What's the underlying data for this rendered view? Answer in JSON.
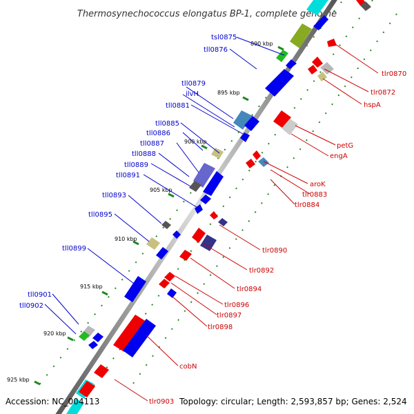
{
  "title": "Thermosynechococcus elongatus BP-1, complete genome",
  "footer": {
    "accession": "Accession: NC_004113",
    "summary": "Topology: circular; Length: 2,593,857 bp; Genes: 2,524"
  },
  "colors": {
    "forward_label": "#0000cc",
    "reverse_label": "#cc0000",
    "backbone": "#888888",
    "tick": "#228822",
    "gene_blue": "#0000ee",
    "gene_red": "#ee0000",
    "gene_olive": "#88aa22",
    "gene_khaki": "#c8c080",
    "gene_grey": "#b8b8b8",
    "gene_dark": "#555555",
    "gene_cyan": "#00dddd",
    "gene_purple": "#6666cc",
    "gene_navy": "#333388",
    "gene_steel": "#4488bb",
    "gene_green": "#22bb22"
  },
  "kbp_labels": [
    "890 kbp",
    "895 kbp",
    "900 kbp",
    "905 kbp",
    "910 kbp",
    "915 kbp",
    "920 kbp",
    "925 kbp"
  ],
  "forward_genes": [
    "tsl0875",
    "tll0876",
    "tll0879",
    "ilvH",
    "tll0881",
    "tll0885",
    "tll0886",
    "tll0887",
    "tll0888",
    "tll0889",
    "tll0891",
    "tll0893",
    "tll0895",
    "tll0899",
    "tll0901",
    "tll0902"
  ],
  "reverse_genes": [
    "tlr0870",
    "tlr0872",
    "hspA",
    "petG",
    "engA",
    "aroK",
    "tlr0883",
    "tlr0884",
    "tlr0890",
    "tlr0892",
    "tlr0894",
    "tlr0896",
    "tlr0897",
    "tlr0898",
    "cobN",
    "tlr0903"
  ]
}
